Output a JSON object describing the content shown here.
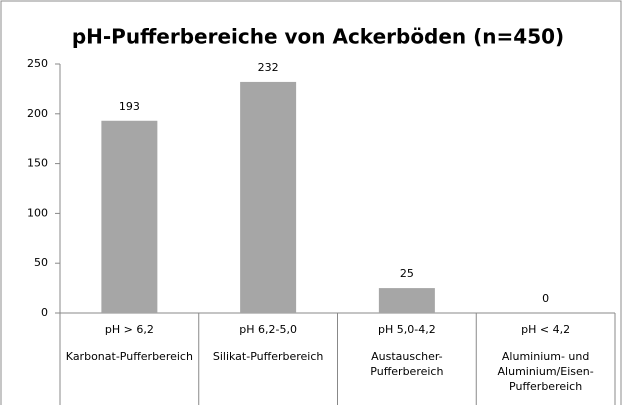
{
  "chart_data": {
    "type": "bar",
    "title": "pH-Pufferbereiche von Ackerböden (n=450)",
    "categories": [
      [
        "pH > 6,2",
        "Karbonat-Pufferbereich"
      ],
      [
        "pH 6,2-5,0",
        "Silikat-Pufferbereich"
      ],
      [
        "pH 5,0-4,2",
        "Austauscher-",
        "Pufferbereich"
      ],
      [
        "pH < 4,2",
        "Aluminium- und",
        "Aluminium/Eisen-",
        "Pufferbereich"
      ]
    ],
    "values": [
      193,
      232,
      25,
      0
    ],
    "color": "#a6a6a6",
    "ylim": [
      0,
      250
    ],
    "yticks": [
      0,
      50,
      100,
      150,
      200,
      250
    ],
    "grid": false
  }
}
